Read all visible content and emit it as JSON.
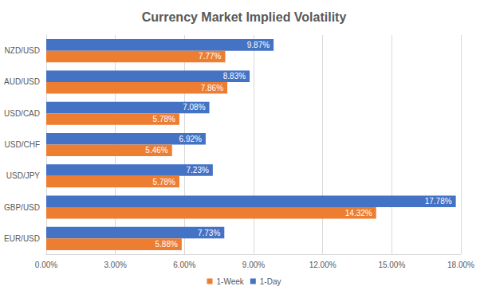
{
  "chart_data": {
    "type": "bar",
    "title": "Currency Market Implied Volatility",
    "orientation": "horizontal",
    "categories": [
      "EUR/USD",
      "GBP/USD",
      "USD/JPY",
      "USD/CHF",
      "USD/CAD",
      "AUD/USD",
      "NZD/USD"
    ],
    "series": [
      {
        "name": "1-Week",
        "color": "#ed7d31",
        "values": [
          5.88,
          14.32,
          5.78,
          5.46,
          5.78,
          7.86,
          7.77
        ],
        "value_labels": [
          "5.88%",
          "14.32%",
          "5.78%",
          "5.46%",
          "5.78%",
          "7.86%",
          "7.77%"
        ]
      },
      {
        "name": "1-Day",
        "color": "#4472c4",
        "values": [
          7.73,
          17.78,
          7.23,
          6.92,
          7.08,
          8.83,
          9.87
        ],
        "value_labels": [
          "7.73%",
          "17.78%",
          "7.23%",
          "6.92%",
          "7.08%",
          "8.83%",
          "9.87%"
        ]
      }
    ],
    "xlim": [
      0,
      18
    ],
    "xticks": [
      {
        "value": 0,
        "label": "0.00%"
      },
      {
        "value": 3,
        "label": "3.00%"
      },
      {
        "value": 6,
        "label": "6.00%"
      },
      {
        "value": 9,
        "label": "9.00%"
      },
      {
        "value": 12,
        "label": "12.00%"
      },
      {
        "value": 15,
        "label": "15.00%"
      },
      {
        "value": 18,
        "label": "18.00%"
      }
    ],
    "grid": true,
    "legend": "bottom",
    "data_labels": true
  }
}
